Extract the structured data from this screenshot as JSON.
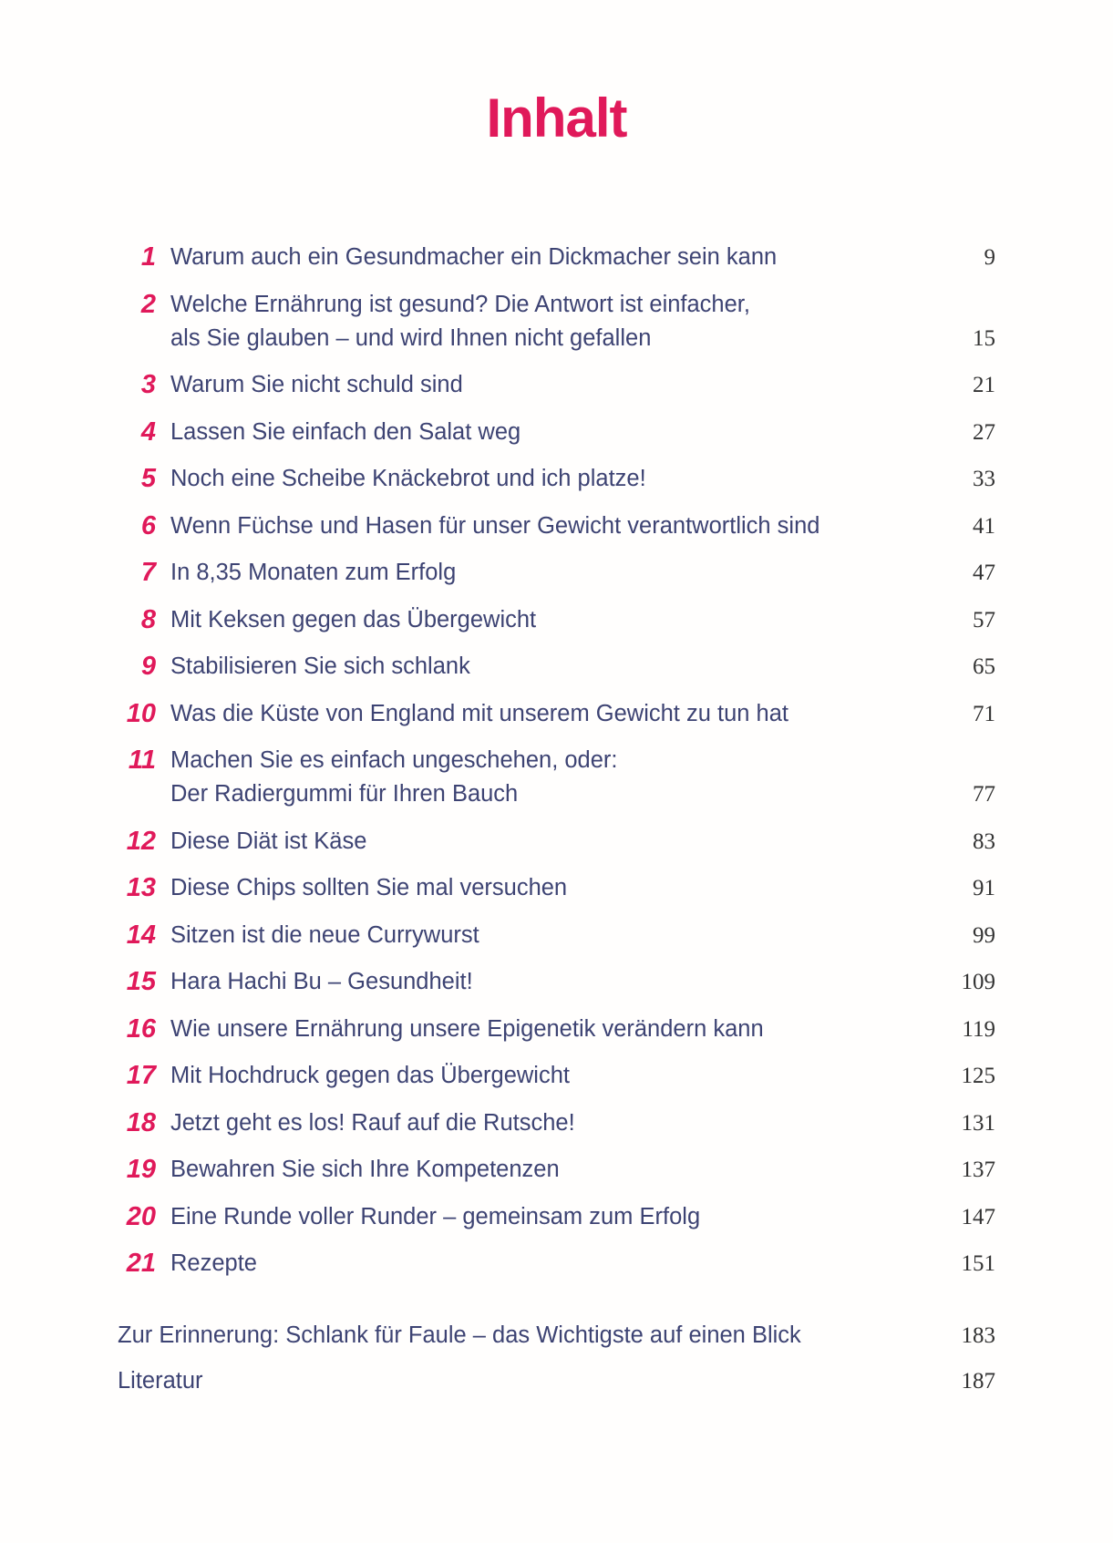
{
  "title": "Inhalt",
  "chapters": [
    {
      "num": "1",
      "lines": [
        "Warum auch ein Gesundmacher ein Dickmacher sein kann"
      ],
      "page": "9"
    },
    {
      "num": "2",
      "lines": [
        "Welche Ernährung ist gesund? Die Antwort ist einfacher,",
        "als Sie glauben – und wird Ihnen nicht gefallen"
      ],
      "page": "15"
    },
    {
      "num": "3",
      "lines": [
        "Warum Sie nicht schuld sind"
      ],
      "page": "21"
    },
    {
      "num": "4",
      "lines": [
        "Lassen Sie einfach den Salat weg"
      ],
      "page": "27"
    },
    {
      "num": "5",
      "lines": [
        "Noch eine Scheibe Knäckebrot und ich platze!"
      ],
      "page": "33"
    },
    {
      "num": "6",
      "lines": [
        "Wenn Füchse und Hasen für unser Gewicht verantwortlich sind"
      ],
      "page": "41"
    },
    {
      "num": "7",
      "lines": [
        "In 8,35 Monaten zum Erfolg"
      ],
      "page": "47"
    },
    {
      "num": "8",
      "lines": [
        "Mit Keksen gegen das Übergewicht"
      ],
      "page": "57"
    },
    {
      "num": "9",
      "lines": [
        "Stabilisieren Sie sich schlank"
      ],
      "page": "65"
    },
    {
      "num": "10",
      "lines": [
        "Was die Küste von England mit unserem Gewicht zu tun hat"
      ],
      "page": "71"
    },
    {
      "num": "11",
      "lines": [
        "Machen Sie es einfach ungeschehen, oder:",
        "Der Radiergummi für Ihren Bauch"
      ],
      "page": "77"
    },
    {
      "num": "12",
      "lines": [
        "Diese Diät ist Käse"
      ],
      "page": "83"
    },
    {
      "num": "13",
      "lines": [
        "Diese Chips sollten Sie mal versuchen"
      ],
      "page": "91"
    },
    {
      "num": "14",
      "lines": [
        "Sitzen ist die neue Currywurst"
      ],
      "page": "99"
    },
    {
      "num": "15",
      "lines": [
        "Hara Hachi Bu – Gesundheit!"
      ],
      "page": "109"
    },
    {
      "num": "16",
      "lines": [
        "Wie unsere Ernährung unsere Epigenetik verändern kann"
      ],
      "page": "119"
    },
    {
      "num": "17",
      "lines": [
        "Mit Hochdruck gegen das Übergewicht"
      ],
      "page": "125"
    },
    {
      "num": "18",
      "lines": [
        "Jetzt geht es los! Rauf auf die Rutsche!"
      ],
      "page": "131"
    },
    {
      "num": "19",
      "lines": [
        "Bewahren Sie sich Ihre Kompetenzen"
      ],
      "page": "137"
    },
    {
      "num": "20",
      "lines": [
        "Eine Runde voller Runder – gemeinsam zum Erfolg"
      ],
      "page": "147"
    },
    {
      "num": "21",
      "lines": [
        "Rezepte"
      ],
      "page": "151"
    }
  ],
  "extras": [
    {
      "text": "Zur Erinnerung: Schlank für Faule – das Wichtigste auf einen Blick",
      "page": "183"
    },
    {
      "text": "Literatur",
      "page": "187"
    }
  ],
  "colors": {
    "accent": "#e0195a",
    "text": "#3d4373"
  }
}
